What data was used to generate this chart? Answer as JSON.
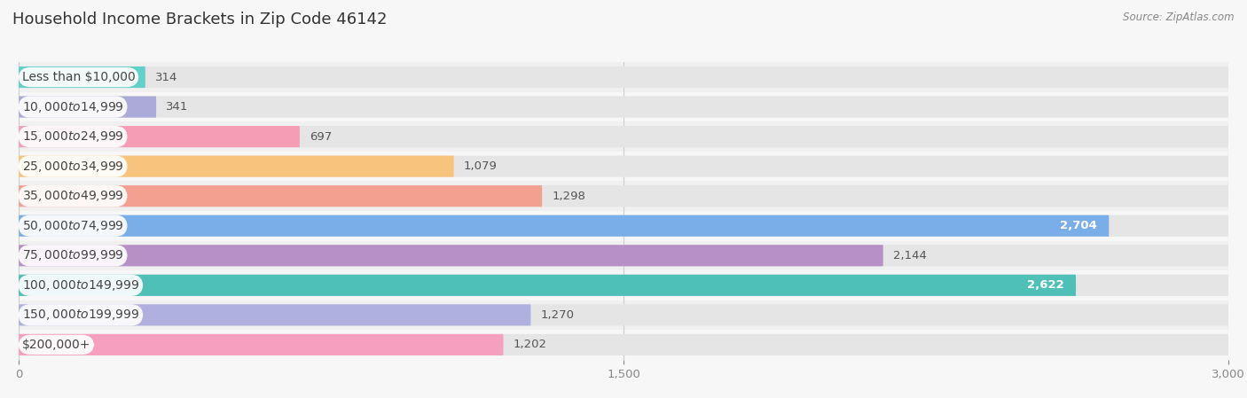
{
  "title": "Household Income Brackets in Zip Code 46142",
  "source": "Source: ZipAtlas.com",
  "categories": [
    "Less than $10,000",
    "$10,000 to $14,999",
    "$15,000 to $24,999",
    "$25,000 to $34,999",
    "$35,000 to $49,999",
    "$50,000 to $74,999",
    "$75,000 to $99,999",
    "$100,000 to $149,999",
    "$150,000 to $199,999",
    "$200,000+"
  ],
  "values": [
    314,
    341,
    697,
    1079,
    1298,
    2704,
    2144,
    2622,
    1270,
    1202
  ],
  "bar_colors": [
    "#62cfc9",
    "#ababd9",
    "#f59db5",
    "#f7c47e",
    "#f4a090",
    "#7aaee8",
    "#b890c8",
    "#4ec0b8",
    "#b0b0e0",
    "#f5a0be"
  ],
  "xlim": [
    0,
    3000
  ],
  "xticks": [
    0,
    1500,
    3000
  ],
  "background_color": "#f7f7f7",
  "bar_bg_color": "#e5e5e5",
  "row_bg_colors": [
    "#f0f0f0",
    "#f7f7f7"
  ],
  "title_fontsize": 13,
  "label_fontsize": 10,
  "value_fontsize": 9.5,
  "bar_height": 0.72,
  "bar_gap": 1.0
}
